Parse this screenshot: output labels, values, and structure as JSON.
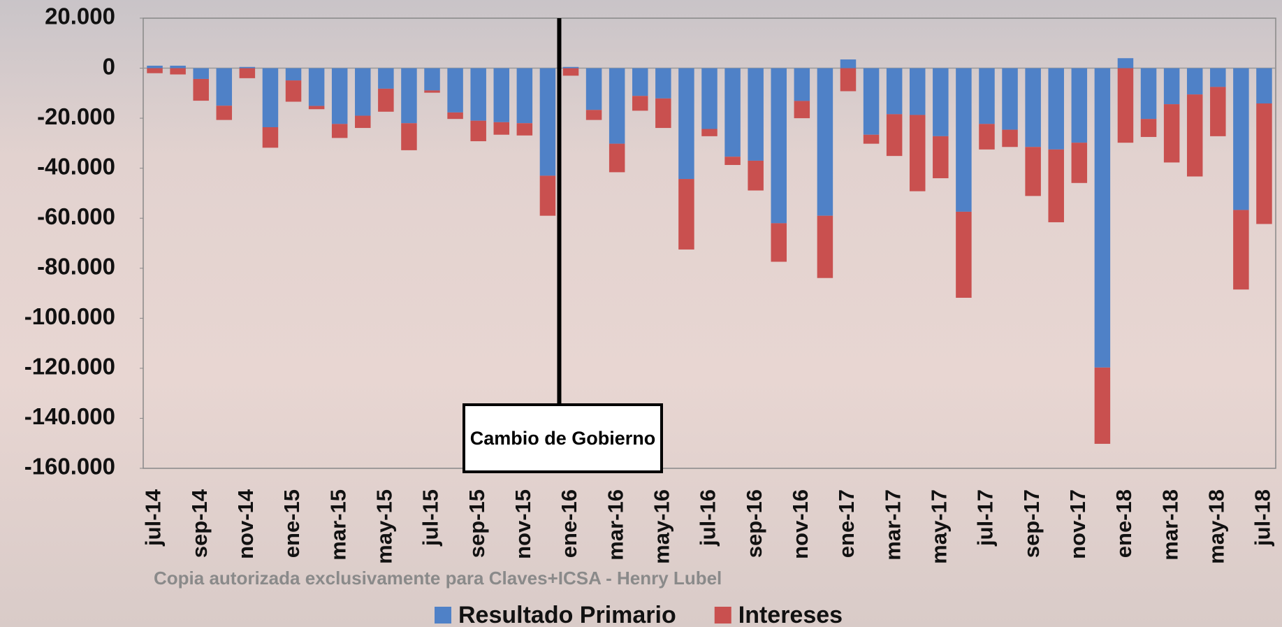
{
  "chart_data": {
    "type": "stacked-bar",
    "categories": [
      "jul-14",
      null,
      "sep-14",
      null,
      "nov-14",
      null,
      "ene-15",
      null,
      "mar-15",
      null,
      "may-15",
      null,
      "jul-15",
      null,
      "sep-15",
      null,
      "nov-15",
      null,
      "ene-16",
      null,
      "mar-16",
      null,
      "may-16",
      null,
      "jul-16",
      null,
      "sep-16",
      null,
      "nov-16",
      null,
      "ene-17",
      null,
      "mar-17",
      null,
      "may-17",
      null,
      "jul-17",
      null,
      "sep-17",
      null,
      "nov-17",
      null,
      "ene-18",
      null,
      "mar-18",
      null,
      "may-18",
      null,
      "jul-18"
    ],
    "series": [
      {
        "name": "Resultado Primario",
        "color": "#4f81c7",
        "values": [
          1000,
          1000,
          -4300,
          -15000,
          500,
          -23600,
          -4900,
          -15100,
          -22300,
          -19000,
          -8200,
          -22000,
          -8900,
          -17700,
          -21000,
          -21600,
          -22000,
          -43000,
          500,
          -16700,
          -30200,
          -11100,
          -12100,
          -44300,
          -24300,
          -35400,
          -37000,
          -62000,
          -13100,
          -59000,
          3500,
          -26600,
          -18400,
          -18700,
          -27200,
          -57400,
          -22300,
          -24600,
          -31500,
          -32500,
          -29800,
          -119700,
          4000,
          -20300,
          -14400,
          -10500,
          -7500,
          -56700,
          -14100
        ]
      },
      {
        "name": "Intereses",
        "color": "#c9504f",
        "values": [
          -2000,
          -2500,
          -8700,
          -5700,
          -4000,
          -8200,
          -8500,
          -1300,
          -5600,
          -4900,
          -9200,
          -10800,
          -900,
          -2600,
          -8200,
          -5000,
          -4900,
          -16000,
          -3000,
          -4000,
          -11400,
          -5900,
          -11800,
          -28200,
          -2900,
          -3300,
          -11900,
          -15400,
          -6900,
          -24900,
          -9200,
          -3600,
          -16700,
          -30500,
          -16800,
          -34400,
          -10200,
          -6900,
          -19600,
          -29100,
          -16100,
          -30500,
          -29800,
          -7200,
          -23300,
          -32800,
          -19700,
          -31800,
          -48200
        ]
      }
    ],
    "ylim": [
      -160000,
      20000
    ],
    "yticks": [
      {
        "value": 20000,
        "label": "20.000"
      },
      0,
      {
        "value": -20000,
        "label": "-20.000"
      },
      {
        "value": -40000,
        "label": "-40.000"
      },
      {
        "value": -60000,
        "label": "-60.000"
      },
      {
        "value": -80000,
        "label": "-80.000"
      },
      {
        "value": -100000,
        "label": "-100.000"
      },
      {
        "value": -120000,
        "label": "-120.000"
      },
      {
        "value": -140000,
        "label": "-140.000"
      },
      {
        "value": -160000,
        "label": "-160.000"
      }
    ],
    "annotation": "Cambio de Gobierno",
    "watermark": "Copia autorizada exclusivamente para Claves+ICSA - Henry Lubel",
    "legend": "bottom"
  }
}
